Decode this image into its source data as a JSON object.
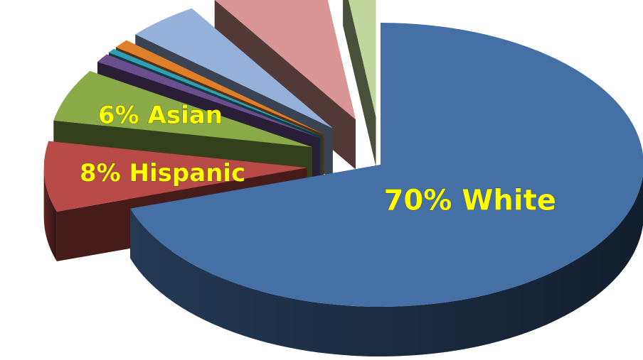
{
  "chart_data": {
    "type": "pie",
    "style": "3d-exploded",
    "legend": "none",
    "slices": [
      {
        "label": "70% White",
        "value": 70,
        "color": "#4470a6",
        "shown_label": true
      },
      {
        "label": "8% Hispanic",
        "value": 8,
        "color": "#b84a48",
        "shown_label": true
      },
      {
        "label": "6% Asian",
        "value": 6,
        "color": "#8aa947",
        "shown_label": true
      },
      {
        "label": "",
        "value": 1,
        "color": "#6a4e8e",
        "shown_label": false
      },
      {
        "label": "",
        "value": 0.5,
        "color": "#2f9fb3",
        "shown_label": false
      },
      {
        "label": "",
        "value": 1,
        "color": "#e07f2a",
        "shown_label": false
      },
      {
        "label": "",
        "value": 4.5,
        "color": "#95b0d9",
        "shown_label": false
      },
      {
        "label": "",
        "value": 7,
        "color": "#d99694",
        "shown_label": false
      },
      {
        "label": "",
        "value": 2,
        "color": "#c2d59c",
        "shown_label": false
      }
    ]
  }
}
